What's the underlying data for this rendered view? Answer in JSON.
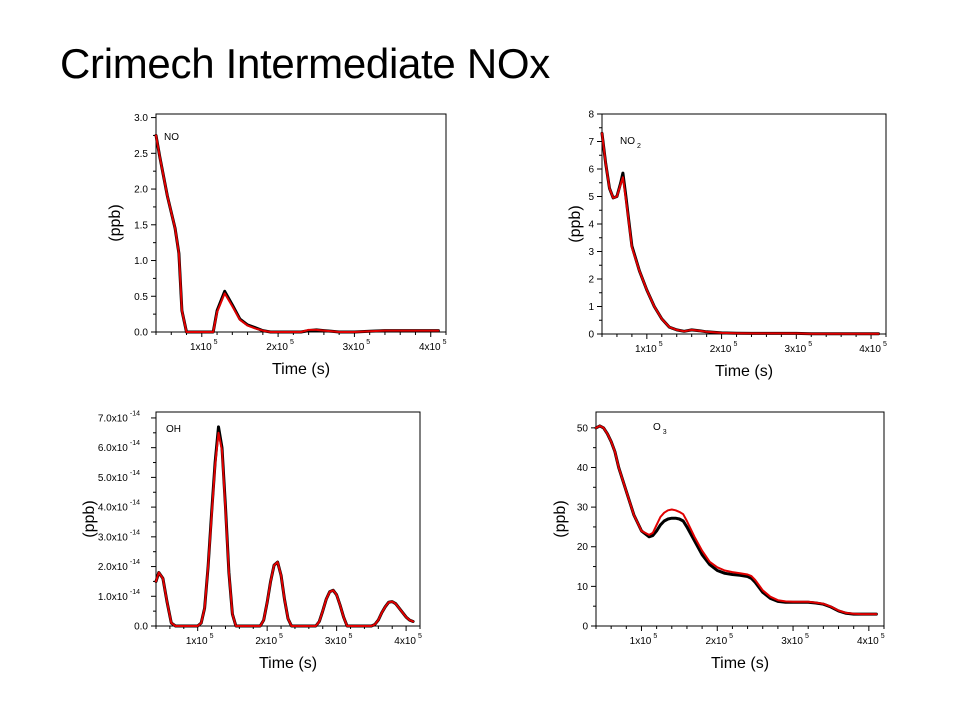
{
  "slide": {
    "title": "Crimech Intermediate NOx"
  },
  "colors": {
    "series_black": "#000000",
    "series_red": "#e00000",
    "axis": "#000000"
  },
  "chart_data": [
    {
      "type": "line",
      "title": "NO",
      "xlabel": "Time (s)",
      "ylabel": "(ppb)",
      "xlim": [
        40000,
        420000
      ],
      "ylim": [
        0,
        3.05
      ],
      "xticks": [
        {
          "v": 100000,
          "mant": "1x10",
          "exp": "5"
        },
        {
          "v": 200000,
          "mant": "2x10",
          "exp": "5"
        },
        {
          "v": 300000,
          "mant": "3x10",
          "exp": "5"
        },
        {
          "v": 400000,
          "mant": "4x10",
          "exp": "5"
        }
      ],
      "yticks": [
        {
          "v": 0,
          "mant": "0.0"
        },
        {
          "v": 0.5,
          "mant": "0.5"
        },
        {
          "v": 1.0,
          "mant": "1.0"
        },
        {
          "v": 1.5,
          "mant": "1.5"
        },
        {
          "v": 2.0,
          "mant": "2.0"
        },
        {
          "v": 2.5,
          "mant": "2.5"
        },
        {
          "v": 3.0,
          "mant": "3.0"
        }
      ],
      "series": [
        {
          "color": "black",
          "x": [
            40000,
            45000,
            55000,
            65000,
            70000,
            74000,
            80000,
            85000,
            90000,
            95000,
            100000,
            105000,
            110000,
            115000,
            120000,
            130000,
            140000,
            150000,
            160000,
            170000,
            180000,
            190000,
            200000,
            210000,
            220000,
            230000,
            240000,
            250000,
            260000,
            270000,
            280000,
            300000,
            320000,
            340000,
            360000,
            380000,
            400000,
            410000
          ],
          "y": [
            2.75,
            2.45,
            1.9,
            1.45,
            1.1,
            0.3,
            0.0,
            0.0,
            0.0,
            0.0,
            0.0,
            0.0,
            0.0,
            0.0,
            0.3,
            0.57,
            0.38,
            0.18,
            0.1,
            0.06,
            0.02,
            0.0,
            0.0,
            0.0,
            0.0,
            0.0,
            0.02,
            0.03,
            0.02,
            0.01,
            0.0,
            0.0,
            0.01,
            0.02,
            0.02,
            0.02,
            0.02,
            0.02
          ]
        },
        {
          "color": "red",
          "x": [
            40000,
            45000,
            55000,
            65000,
            70000,
            74000,
            80000,
            85000,
            90000,
            95000,
            100000,
            105000,
            110000,
            115000,
            120000,
            130000,
            140000,
            150000,
            160000,
            170000,
            180000,
            190000,
            200000,
            210000,
            220000,
            230000,
            240000,
            250000,
            260000,
            270000,
            280000,
            300000,
            320000,
            340000,
            360000,
            380000,
            400000,
            410000
          ],
          "y": [
            2.75,
            2.45,
            1.9,
            1.45,
            1.1,
            0.3,
            0.0,
            0.0,
            0.0,
            0.0,
            0.0,
            0.0,
            0.0,
            0.0,
            0.28,
            0.54,
            0.36,
            0.17,
            0.09,
            0.05,
            0.02,
            0.0,
            0.0,
            0.0,
            0.0,
            0.0,
            0.03,
            0.03,
            0.02,
            0.01,
            0.0,
            0.0,
            0.01,
            0.02,
            0.02,
            0.02,
            0.02,
            0.02
          ]
        }
      ]
    },
    {
      "type": "line",
      "title": "NO",
      "title_sub": "2",
      "xlabel": "Time (s)",
      "ylabel": "(ppb)",
      "xlim": [
        40000,
        420000
      ],
      "ylim": [
        0,
        8
      ],
      "xticks": [
        {
          "v": 100000,
          "mant": "1x10",
          "exp": "5"
        },
        {
          "v": 200000,
          "mant": "2x10",
          "exp": "5"
        },
        {
          "v": 300000,
          "mant": "3x10",
          "exp": "5"
        },
        {
          "v": 400000,
          "mant": "4x10",
          "exp": "5"
        }
      ],
      "yticks": [
        {
          "v": 0,
          "mant": "0"
        },
        {
          "v": 1,
          "mant": "1"
        },
        {
          "v": 2,
          "mant": "2"
        },
        {
          "v": 3,
          "mant": "3"
        },
        {
          "v": 4,
          "mant": "4"
        },
        {
          "v": 5,
          "mant": "5"
        },
        {
          "v": 6,
          "mant": "6"
        },
        {
          "v": 7,
          "mant": "7"
        },
        {
          "v": 8,
          "mant": "8"
        }
      ],
      "series": [
        {
          "color": "black",
          "x": [
            40000,
            45000,
            50000,
            55000,
            60000,
            65000,
            68000,
            72000,
            75000,
            80000,
            90000,
            100000,
            110000,
            120000,
            130000,
            140000,
            150000,
            160000,
            170000,
            180000,
            200000,
            220000,
            240000,
            260000,
            280000,
            300000,
            320000,
            340000,
            360000,
            380000,
            400000,
            410000
          ],
          "y": [
            7.3,
            6.2,
            5.3,
            4.95,
            5.0,
            5.5,
            5.85,
            5.0,
            4.3,
            3.2,
            2.3,
            1.6,
            1.0,
            0.55,
            0.25,
            0.15,
            0.1,
            0.15,
            0.12,
            0.08,
            0.04,
            0.03,
            0.02,
            0.02,
            0.02,
            0.02,
            0.01,
            0.01,
            0.01,
            0.01,
            0.01,
            0.01
          ]
        },
        {
          "color": "red",
          "x": [
            40000,
            45000,
            50000,
            55000,
            60000,
            65000,
            68000,
            72000,
            75000,
            80000,
            90000,
            100000,
            110000,
            120000,
            130000,
            140000,
            150000,
            160000,
            170000,
            180000,
            200000,
            220000,
            240000,
            260000,
            280000,
            300000,
            320000,
            340000,
            360000,
            380000,
            400000,
            410000
          ],
          "y": [
            7.3,
            6.2,
            5.3,
            4.95,
            5.0,
            5.45,
            5.7,
            4.9,
            4.25,
            3.15,
            2.3,
            1.6,
            1.0,
            0.55,
            0.25,
            0.15,
            0.1,
            0.15,
            0.12,
            0.08,
            0.04,
            0.03,
            0.02,
            0.02,
            0.02,
            0.02,
            0.01,
            0.01,
            0.01,
            0.01,
            0.01,
            0.01
          ]
        }
      ]
    },
    {
      "type": "line",
      "title": "OH",
      "xlabel": "Time (s)",
      "ylabel": "(ppb)",
      "xlim": [
        40000,
        420000
      ],
      "ylim": [
        0,
        7.2e-14
      ],
      "xticks": [
        {
          "v": 100000,
          "mant": "1x10",
          "exp": "5"
        },
        {
          "v": 200000,
          "mant": "2x10",
          "exp": "5"
        },
        {
          "v": 300000,
          "mant": "3x10",
          "exp": "5"
        },
        {
          "v": 400000,
          "mant": "4x10",
          "exp": "5"
        }
      ],
      "yticks": [
        {
          "v": 0,
          "mant": "0.0"
        },
        {
          "v": 1e-14,
          "mant": "1.0x10",
          "exp": "-14"
        },
        {
          "v": 2e-14,
          "mant": "2.0x10",
          "exp": "-14"
        },
        {
          "v": 3e-14,
          "mant": "3.0x10",
          "exp": "-14"
        },
        {
          "v": 4e-14,
          "mant": "4.0x10",
          "exp": "-14"
        },
        {
          "v": 5e-14,
          "mant": "5.0x10",
          "exp": "-14"
        },
        {
          "v": 6e-14,
          "mant": "6.0x10",
          "exp": "-14"
        },
        {
          "v": 7e-14,
          "mant": "7.0x10",
          "exp": "-14"
        }
      ],
      "series": [
        {
          "color": "black",
          "x": [
            40000,
            44000,
            50000,
            56000,
            62000,
            68000,
            100000,
            105000,
            110000,
            115000,
            120000,
            125000,
            130000,
            135000,
            140000,
            145000,
            150000,
            155000,
            190000,
            195000,
            200000,
            205000,
            210000,
            215000,
            220000,
            225000,
            230000,
            235000,
            270000,
            275000,
            280000,
            285000,
            290000,
            295000,
            300000,
            305000,
            310000,
            315000,
            350000,
            355000,
            360000,
            365000,
            370000,
            375000,
            380000,
            385000,
            390000,
            395000,
            400000,
            405000,
            410000
          ],
          "y": [
            1.5e-14,
            1.8e-14,
            1.6e-14,
            8e-15,
            1e-15,
            0.0,
            0.0,
            1e-15,
            6e-15,
            2e-14,
            3.8e-14,
            5.5e-14,
            6.7e-14,
            6e-14,
            4e-14,
            1.8e-14,
            4e-15,
            0.0,
            0.0,
            2e-15,
            8e-15,
            1.5e-14,
            2.05e-14,
            2.15e-14,
            1.7e-14,
            9e-15,
            2.5e-15,
            0.0,
            0.0,
            1.5e-15,
            5e-15,
            9e-15,
            1.15e-14,
            1.2e-14,
            1.05e-14,
            7e-15,
            3e-15,
            0.0,
            0.0,
            5e-16,
            2e-15,
            4.5e-15,
            6.5e-15,
            8e-15,
            8.2e-15,
            7.5e-15,
            6e-15,
            4.5e-15,
            3e-15,
            2e-15,
            1.5e-15
          ]
        },
        {
          "color": "red",
          "x": [
            40000,
            44000,
            50000,
            56000,
            62000,
            68000,
            100000,
            105000,
            110000,
            115000,
            120000,
            125000,
            130000,
            135000,
            140000,
            145000,
            150000,
            155000,
            190000,
            195000,
            200000,
            205000,
            210000,
            215000,
            220000,
            225000,
            230000,
            235000,
            270000,
            275000,
            280000,
            285000,
            290000,
            295000,
            300000,
            305000,
            310000,
            315000,
            350000,
            355000,
            360000,
            365000,
            370000,
            375000,
            380000,
            385000,
            390000,
            395000,
            400000,
            405000,
            410000
          ],
          "y": [
            1.5e-14,
            1.8e-14,
            1.6e-14,
            8e-15,
            1e-15,
            0.0,
            0.0,
            1e-15,
            6e-15,
            2e-14,
            3.7e-14,
            5.4e-14,
            6.5e-14,
            5.9e-14,
            3.9e-14,
            1.8e-14,
            4e-15,
            0.0,
            0.0,
            2e-15,
            8e-15,
            1.5e-14,
            2.05e-14,
            2.15e-14,
            1.7e-14,
            9e-15,
            2.5e-15,
            0.0,
            0.0,
            1.5e-15,
            5e-15,
            9e-15,
            1.15e-14,
            1.2e-14,
            1.05e-14,
            7e-15,
            3e-15,
            0.0,
            0.0,
            5e-16,
            2e-15,
            4.5e-15,
            6.5e-15,
            8e-15,
            8.2e-15,
            7.5e-15,
            6e-15,
            4.5e-15,
            3e-15,
            2e-15,
            1.5e-15
          ]
        }
      ]
    },
    {
      "type": "line",
      "title": "O",
      "title_sub": "3",
      "xlabel": "Time (s)",
      "ylabel": "(ppb)",
      "xlim": [
        40000,
        420000
      ],
      "ylim": [
        0,
        54
      ],
      "xticks": [
        {
          "v": 100000,
          "mant": "1x10",
          "exp": "5"
        },
        {
          "v": 200000,
          "mant": "2x10",
          "exp": "5"
        },
        {
          "v": 300000,
          "mant": "3x10",
          "exp": "5"
        },
        {
          "v": 400000,
          "mant": "4x10",
          "exp": "5"
        }
      ],
      "yticks": [
        {
          "v": 0,
          "mant": "0"
        },
        {
          "v": 10,
          "mant": "10"
        },
        {
          "v": 20,
          "mant": "20"
        },
        {
          "v": 30,
          "mant": "30"
        },
        {
          "v": 40,
          "mant": "40"
        },
        {
          "v": 50,
          "mant": "50"
        }
      ],
      "series": [
        {
          "color": "black",
          "x": [
            40000,
            45000,
            50000,
            55000,
            60000,
            65000,
            70000,
            80000,
            90000,
            100000,
            110000,
            115000,
            120000,
            125000,
            130000,
            135000,
            140000,
            145000,
            150000,
            155000,
            160000,
            170000,
            180000,
            190000,
            200000,
            210000,
            220000,
            230000,
            240000,
            245000,
            250000,
            260000,
            270000,
            280000,
            290000,
            300000,
            310000,
            320000,
            330000,
            340000,
            350000,
            360000,
            370000,
            380000,
            390000,
            400000,
            410000
          ],
          "y": [
            50,
            50.5,
            50,
            48.5,
            46.5,
            44,
            40,
            34,
            28,
            24,
            22.5,
            22.8,
            24,
            25.5,
            26.5,
            27,
            27.2,
            27.2,
            27,
            26.5,
            25,
            21.5,
            18,
            15.5,
            14,
            13.3,
            13,
            12.8,
            12.5,
            12,
            11,
            8.5,
            7,
            6.2,
            6.0,
            6.0,
            6.0,
            6.0,
            5.8,
            5.5,
            4.8,
            3.8,
            3.2,
            3.0,
            3.0,
            3.0,
            3.0
          ]
        },
        {
          "color": "red",
          "x": [
            40000,
            45000,
            50000,
            55000,
            60000,
            65000,
            70000,
            80000,
            90000,
            100000,
            110000,
            115000,
            120000,
            125000,
            130000,
            135000,
            140000,
            145000,
            150000,
            155000,
            160000,
            170000,
            180000,
            190000,
            200000,
            210000,
            220000,
            230000,
            240000,
            245000,
            250000,
            260000,
            270000,
            280000,
            290000,
            300000,
            310000,
            320000,
            330000,
            340000,
            350000,
            360000,
            370000,
            380000,
            390000,
            400000,
            410000
          ],
          "y": [
            50,
            50.5,
            50,
            48.5,
            46.5,
            44,
            40,
            34,
            28,
            24,
            23,
            23.5,
            25.5,
            27.5,
            28.6,
            29.2,
            29.4,
            29.2,
            28.8,
            28.2,
            26.5,
            22.5,
            19,
            16.2,
            14.8,
            14,
            13.6,
            13.3,
            13.0,
            12.6,
            11.6,
            9.0,
            7.4,
            6.5,
            6.2,
            6.1,
            6.1,
            6.1,
            5.9,
            5.6,
            4.9,
            3.9,
            3.3,
            3.1,
            3.0,
            3.0,
            3.0
          ]
        }
      ]
    }
  ]
}
